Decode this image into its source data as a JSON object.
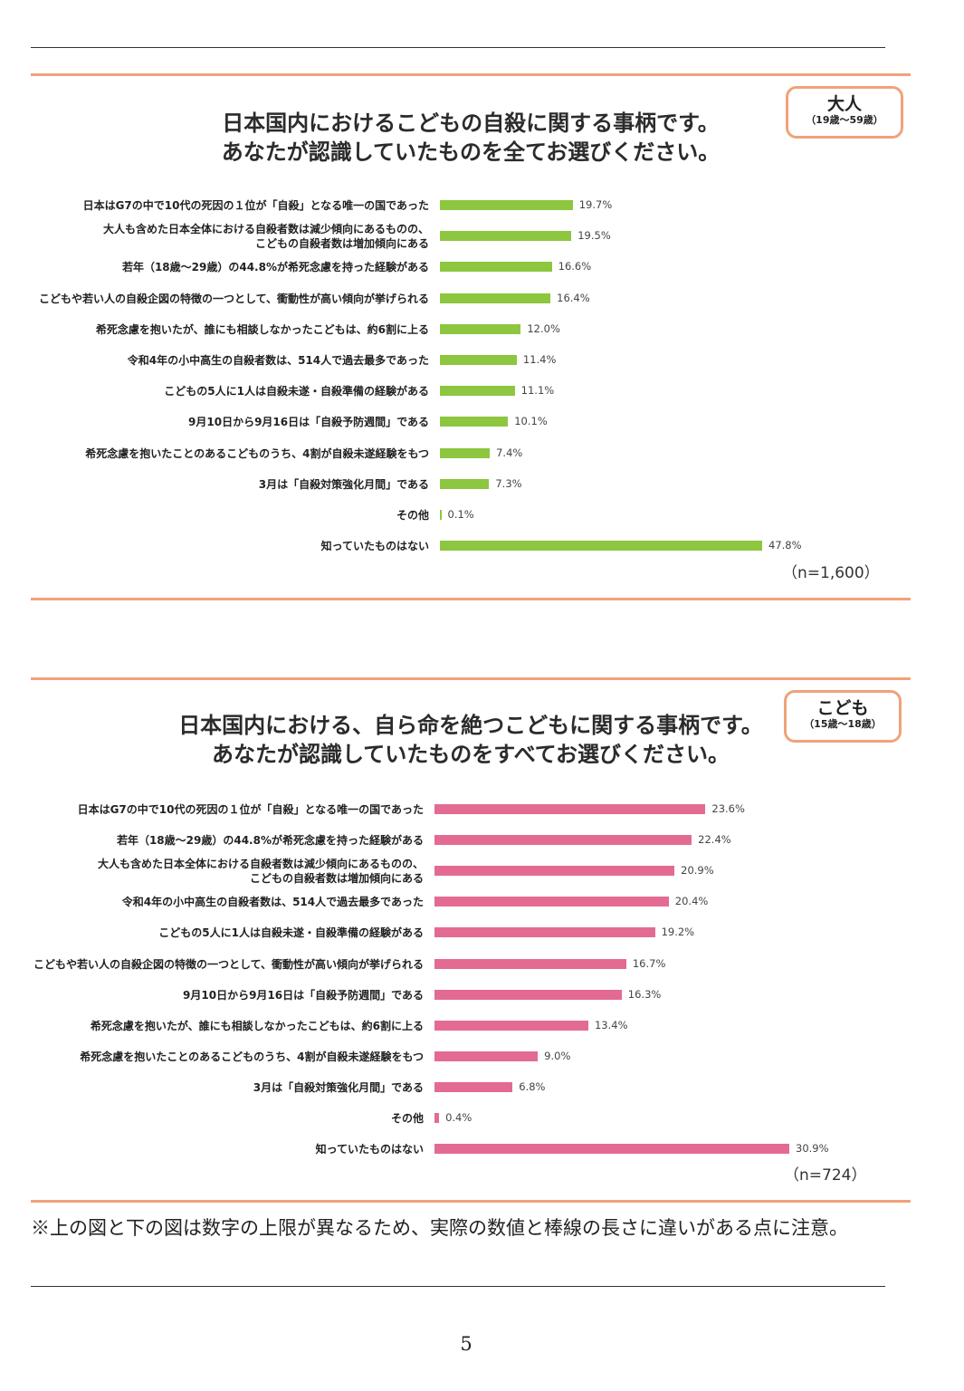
{
  "chart_data": [
    {
      "type": "bar",
      "orientation": "horizontal",
      "title": "日本国内におけるこどもの自殺に関する事柄です。\nあなたが認識していたものを全てお選びください。",
      "title_lines": [
        "日本国内におけるこどもの自殺に関する事柄です。",
        "あなたが認識していたものを全てお選びください。"
      ],
      "badge": {
        "label": "大人",
        "sub": "（19歳～59歳）"
      },
      "n_label": "（n=1,600）",
      "unit": "%",
      "color": "#8dc63f",
      "xlim": [
        0,
        47.8
      ],
      "categories": [
        [
          "日本はG7の中で10代の死因の１位が「自殺」となる唯一の国であった"
        ],
        [
          "大人も含めた日本全体における自殺者数は減少傾向にあるものの、",
          "こどもの自殺者数は増加傾向にある"
        ],
        [
          "若年（18歳～29歳）の44.8%が希死念慮を持った経験がある"
        ],
        [
          "こどもや若い人の自殺企図の特徴の一つとして、衝動性が高い傾向が挙げられる"
        ],
        [
          "希死念慮を抱いたが、誰にも相談しなかったこどもは、約6割に上る"
        ],
        [
          "令和4年の小中高生の自殺者数は、514人で過去最多であった"
        ],
        [
          "こどもの5人に1人は自殺未遂・自殺準備の経験がある"
        ],
        [
          "9月10日から9月16日は「自殺予防週間」である"
        ],
        [
          "希死念慮を抱いたことのあるこどものうち、4割が自殺未遂経験をもつ"
        ],
        [
          "3月は「自殺対策強化月間」である"
        ],
        [
          "その他"
        ],
        [
          "知っていたものはない"
        ]
      ],
      "values": [
        19.7,
        19.5,
        16.6,
        16.4,
        12.0,
        11.4,
        11.1,
        10.1,
        7.4,
        7.3,
        0.1,
        47.8
      ],
      "value_labels": [
        "19.7%",
        "19.5%",
        "16.6%",
        "16.4%",
        "12.0%",
        "11.4%",
        "11.1%",
        "10.1%",
        "7.4%",
        "7.3%",
        "0.1%",
        "47.8%"
      ]
    },
    {
      "type": "bar",
      "orientation": "horizontal",
      "title": "日本国内における、自ら命を絶つこどもに関する事柄です。\nあなたが認識していたものをすべてお選びください。",
      "title_lines": [
        "日本国内における、自ら命を絶つこどもに関する事柄です。",
        "あなたが認識していたものをすべてお選びください。"
      ],
      "badge": {
        "label": "こども",
        "sub": "（15歳～18歳）"
      },
      "n_label": "（n=724）",
      "unit": "%",
      "color": "#e36b92",
      "xlim": [
        0,
        30.9
      ],
      "categories": [
        [
          "日本はG7の中で10代の死因の１位が「自殺」となる唯一の国であった"
        ],
        [
          "若年（18歳～29歳）の44.8%が希死念慮を持った経験がある"
        ],
        [
          "大人も含めた日本全体における自殺者数は減少傾向にあるものの、",
          "こどもの自殺者数は増加傾向にある"
        ],
        [
          "令和4年の小中高生の自殺者数は、514人で過去最多であった"
        ],
        [
          "こどもの5人に1人は自殺未遂・自殺準備の経験がある"
        ],
        [
          "こどもや若い人の自殺企図の特徴の一つとして、衝動性が高い傾向が挙げられる"
        ],
        [
          "9月10日から9月16日は「自殺予防週間」である"
        ],
        [
          "希死念慮を抱いたが、誰にも相談しなかったこどもは、約6割に上る"
        ],
        [
          "希死念慮を抱いたことのあるこどものうち、4割が自殺未遂経験をもつ"
        ],
        [
          "3月は「自殺対策強化月間」である"
        ],
        [
          "その他"
        ],
        [
          "知っていたものはない"
        ]
      ],
      "values": [
        23.6,
        22.4,
        20.9,
        20.4,
        19.2,
        16.7,
        16.3,
        13.4,
        9.0,
        6.8,
        0.4,
        30.9
      ],
      "value_labels": [
        "23.6%",
        "22.4%",
        "20.9%",
        "20.4%",
        "19.2%",
        "16.7%",
        "16.3%",
        "13.4%",
        "9.0%",
        "6.8%",
        "0.4%",
        "30.9%"
      ]
    }
  ],
  "note": "※上の図と下の図は数字の上限が異なるため、実際の数値と棒線の長さに違いがある点に注意。",
  "page_number": "5"
}
